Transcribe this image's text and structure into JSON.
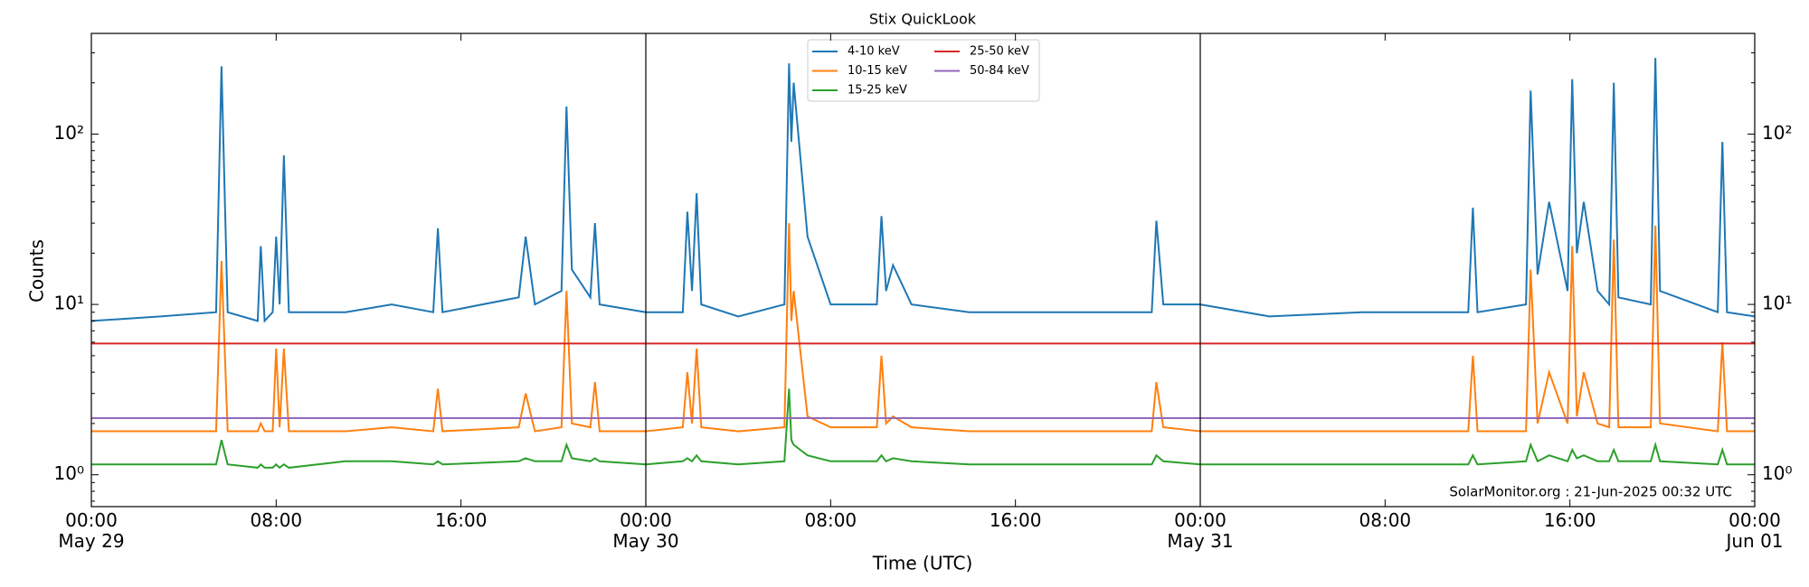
{
  "chart_data": {
    "type": "line",
    "title": "Stix QuickLook",
    "xlabel": "Time (UTC)",
    "ylabel": "Counts",
    "annotation": "SolarMonitor.org : 21-Jun-2025 00:32 UTC",
    "log_y": true,
    "legend": "upper center",
    "xlim": [
      "May 29 00:00",
      "Jun 01 00:00"
    ],
    "xticks": [
      {
        "value": "May 29 00:00",
        "label": "00:00\nMay 29"
      },
      {
        "value": "May 29 08:00",
        "label": "08:00"
      },
      {
        "value": "May 29 16:00",
        "label": "16:00"
      },
      {
        "value": "May 30 00:00",
        "label": "00:00\nMay 30"
      },
      {
        "value": "May 30 08:00",
        "label": "08:00"
      },
      {
        "value": "May 30 16:00",
        "label": "16:00"
      },
      {
        "value": "May 31 00:00",
        "label": "00:00\nMay 31"
      },
      {
        "value": "May 31 08:00",
        "label": "08:00"
      },
      {
        "value": "May 31 16:00",
        "label": "16:00"
      },
      {
        "value": "Jun 01 00:00",
        "label": "00:00\nJun 01"
      }
    ],
    "vlines": [
      "May 30 00:00",
      "May 31 00:00"
    ],
    "ylim": [
      0.65,
      390
    ],
    "yticks": [
      {
        "value": 1,
        "label": "10⁰"
      },
      {
        "value": 10,
        "label": "10¹"
      },
      {
        "value": 100,
        "label": "10²"
      }
    ],
    "x": [
      "May 29 00:00",
      "May 29 03:00",
      "May 29 05:24",
      "May 29 05:38",
      "May 29 05:54",
      "May 29 07:12",
      "May 29 07:20",
      "May 29 07:30",
      "May 29 07:51",
      "May 29 08:00",
      "May 29 08:09",
      "May 29 08:20",
      "May 29 08:33",
      "May 29 11:00",
      "May 29 13:00",
      "May 29 14:48",
      "May 29 15:00",
      "May 29 15:12",
      "May 29 18:30",
      "May 29 18:48",
      "May 29 19:12",
      "May 29 20:21",
      "May 29 20:34",
      "May 29 20:48",
      "May 29 21:36",
      "May 29 21:48",
      "May 29 22:00",
      "May 30 00:00",
      "May 30 01:36",
      "May 30 01:48",
      "May 30 02:00",
      "May 30 02:12",
      "May 30 02:24",
      "May 30 04:00",
      "May 30 06:00",
      "May 30 06:12",
      "May 30 06:18",
      "May 30 06:24",
      "May 30 07:00",
      "May 30 08:00",
      "May 30 10:00",
      "May 30 10:12",
      "May 30 10:24",
      "May 30 10:42",
      "May 30 11:30",
      "May 30 14:00",
      "May 30 18:00",
      "May 30 21:54",
      "May 30 22:06",
      "May 30 22:24",
      "May 31 00:00",
      "May 31 03:00",
      "May 31 07:00",
      "May 31 11:36",
      "May 31 11:48",
      "May 31 12:00",
      "May 31 14:06",
      "May 31 14:18",
      "May 31 14:36",
      "May 31 15:06",
      "May 31 15:54",
      "May 31 16:06",
      "May 31 16:18",
      "May 31 16:36",
      "May 31 17:12",
      "May 31 17:42",
      "May 31 17:54",
      "May 31 18:06",
      "May 31 19:30",
      "May 31 19:42",
      "May 31 19:54",
      "May 31 22:24",
      "May 31 22:36",
      "May 31 22:48",
      "Jun 01 00:00"
    ],
    "series": [
      {
        "name": "4-10 keV",
        "color": "#1f77b4",
        "values": [
          8,
          8.5,
          9,
          250,
          9,
          8,
          22,
          8,
          9,
          25,
          10,
          75,
          9,
          9,
          10,
          9,
          28,
          9,
          11,
          25,
          10,
          12,
          145,
          16,
          11,
          30,
          10,
          9,
          9,
          35,
          12,
          45,
          10,
          8.5,
          10,
          260,
          90,
          200,
          25,
          10,
          10,
          33,
          12,
          17,
          10,
          9,
          9,
          9,
          31,
          10,
          10,
          8.5,
          9,
          9,
          37,
          9,
          10,
          180,
          15,
          40,
          12,
          210,
          20,
          40,
          12,
          10,
          200,
          11,
          10,
          280,
          12,
          9,
          90,
          9,
          8.5
        ]
      },
      {
        "name": "10-15 keV",
        "color": "#ff7f0e",
        "values": [
          1.8,
          1.8,
          1.8,
          18,
          1.8,
          1.8,
          2,
          1.8,
          1.8,
          5.5,
          1.9,
          5.5,
          1.8,
          1.8,
          1.9,
          1.8,
          3.2,
          1.8,
          1.9,
          3,
          1.8,
          1.9,
          12,
          2,
          1.9,
          3.5,
          1.8,
          1.8,
          1.9,
          4,
          2,
          5.5,
          1.9,
          1.8,
          1.9,
          30,
          8,
          12,
          2.2,
          1.9,
          1.9,
          5,
          2,
          2.2,
          1.9,
          1.8,
          1.8,
          1.8,
          3.5,
          1.9,
          1.8,
          1.8,
          1.8,
          1.8,
          5,
          1.8,
          1.8,
          16,
          2,
          4,
          2,
          22,
          2.2,
          4,
          2,
          1.9,
          24,
          1.9,
          1.9,
          29,
          2,
          1.8,
          6,
          1.8,
          1.8
        ]
      },
      {
        "name": "15-25 keV",
        "color": "#2ca02c",
        "values": [
          1.15,
          1.15,
          1.15,
          1.6,
          1.15,
          1.1,
          1.15,
          1.1,
          1.1,
          1.15,
          1.1,
          1.15,
          1.1,
          1.2,
          1.2,
          1.15,
          1.2,
          1.15,
          1.2,
          1.25,
          1.2,
          1.2,
          1.5,
          1.25,
          1.2,
          1.25,
          1.2,
          1.15,
          1.2,
          1.25,
          1.2,
          1.3,
          1.2,
          1.15,
          1.2,
          3.2,
          1.6,
          1.5,
          1.3,
          1.2,
          1.2,
          1.3,
          1.2,
          1.25,
          1.2,
          1.15,
          1.15,
          1.15,
          1.3,
          1.2,
          1.15,
          1.15,
          1.15,
          1.15,
          1.3,
          1.15,
          1.2,
          1.5,
          1.2,
          1.3,
          1.2,
          1.4,
          1.25,
          1.3,
          1.2,
          1.2,
          1.4,
          1.2,
          1.2,
          1.5,
          1.2,
          1.15,
          1.4,
          1.15,
          1.15
        ]
      },
      {
        "name": "25-50 keV",
        "color": "#d62728",
        "values": [
          5.9,
          5.9,
          5.9,
          5.9,
          5.9,
          5.9,
          5.9,
          5.9,
          5.9,
          5.9,
          5.9,
          5.9,
          5.9,
          5.9,
          5.9,
          5.9,
          5.9,
          5.9,
          5.9,
          5.9,
          5.9,
          5.9,
          5.9,
          5.9,
          5.9,
          5.9,
          5.9,
          5.9,
          5.9,
          5.9,
          5.9,
          5.9,
          5.9,
          5.9,
          5.9,
          5.9,
          5.9,
          5.9,
          5.9,
          5.9,
          5.9,
          5.9,
          5.9,
          5.9,
          5.9,
          5.9,
          5.9,
          5.9,
          5.9,
          5.9,
          5.9,
          5.9,
          5.9,
          5.9,
          5.9,
          5.9,
          5.9,
          5.9,
          5.9,
          5.9,
          5.9,
          5.9,
          5.9,
          5.9,
          5.9,
          5.9,
          5.9,
          5.9,
          5.9,
          5.9,
          5.9,
          5.9,
          5.9,
          5.9,
          5.9
        ]
      },
      {
        "name": "50-84 keV",
        "color": "#9467bd",
        "values": [
          2.15,
          2.15,
          2.15,
          2.15,
          2.15,
          2.15,
          2.15,
          2.15,
          2.15,
          2.15,
          2.15,
          2.15,
          2.15,
          2.15,
          2.15,
          2.15,
          2.15,
          2.15,
          2.15,
          2.15,
          2.15,
          2.15,
          2.15,
          2.15,
          2.15,
          2.15,
          2.15,
          2.15,
          2.15,
          2.15,
          2.15,
          2.15,
          2.15,
          2.15,
          2.15,
          2.15,
          2.15,
          2.15,
          2.15,
          2.15,
          2.15,
          2.15,
          2.15,
          2.15,
          2.15,
          2.15,
          2.15,
          2.15,
          2.15,
          2.15,
          2.15,
          2.15,
          2.15,
          2.15,
          2.15,
          2.15,
          2.15,
          2.15,
          2.15,
          2.15,
          2.15,
          2.15,
          2.15,
          2.15,
          2.15,
          2.15,
          2.15,
          2.15,
          2.15,
          2.15,
          2.15,
          2.15,
          2.15,
          2.15,
          2.15
        ]
      }
    ]
  }
}
